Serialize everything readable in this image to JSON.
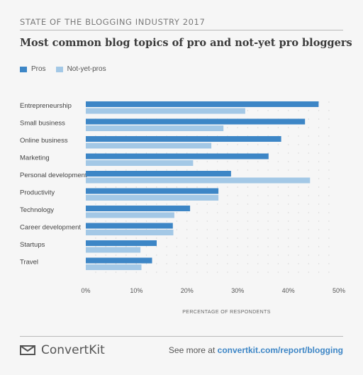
{
  "header": {
    "kicker": "STATE OF THE BLOGGING INDUSTRY 2017",
    "title": "Most common blog topics of pro and not-yet pro bloggers"
  },
  "chart_data": {
    "type": "bar",
    "orientation": "horizontal",
    "categories": [
      "Entrepreneurship",
      "Small business",
      "Online business",
      "Marketing",
      "Personal development",
      "Productivity",
      "Technology",
      "Career development",
      "Startups",
      "Travel"
    ],
    "series": [
      {
        "name": "Pros",
        "color": "#3d86c6",
        "values": [
          46,
          43.3,
          38.6,
          36.1,
          28.7,
          26.2,
          20.6,
          17.2,
          14,
          13.1
        ]
      },
      {
        "name": "Not-yet-pros",
        "color": "#a3c8e6",
        "values": [
          31.5,
          27.2,
          24.8,
          21.2,
          44.3,
          26.2,
          17.5,
          17.3,
          10.8,
          11
        ]
      }
    ],
    "xlim": [
      0,
      50
    ],
    "xticks": [
      "0%",
      "10%",
      "20%",
      "30%",
      "40%",
      "50%"
    ],
    "xlabel": "PERCENTAGE OF RESPONDENTS",
    "grid": "dotted",
    "legend_position": "top-left"
  },
  "footer": {
    "brand": "ConvertKit",
    "see_more": "See more at",
    "url": "convertkit.com/report/blogging",
    "logo_icon": "envelope-icon"
  }
}
